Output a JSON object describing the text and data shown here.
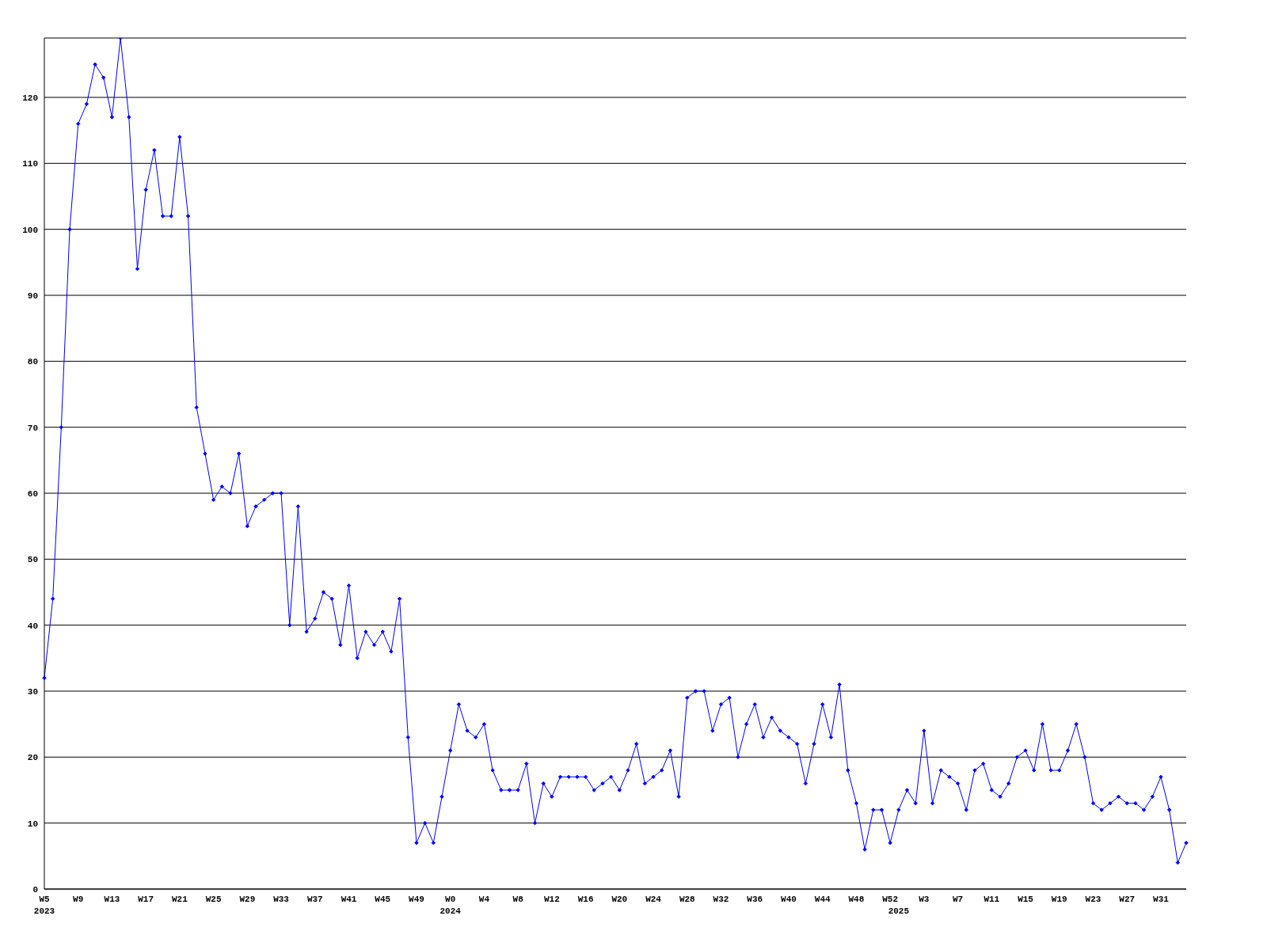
{
  "chart_data": {
    "type": "line",
    "categories": [
      "W5\n2023",
      null,
      null,
      null,
      "W9",
      null,
      null,
      null,
      "W13",
      null,
      null,
      null,
      "W17",
      null,
      null,
      null,
      "W21",
      null,
      null,
      null,
      "W25",
      null,
      null,
      null,
      "W29",
      null,
      null,
      null,
      "W33",
      null,
      null,
      null,
      "W37",
      null,
      null,
      null,
      "W41",
      null,
      null,
      null,
      "W45",
      null,
      null,
      null,
      "W49",
      null,
      null,
      null,
      "W0\n2024",
      null,
      null,
      null,
      "W4",
      null,
      null,
      null,
      "W8",
      null,
      null,
      null,
      "W12",
      null,
      null,
      null,
      "W16",
      null,
      null,
      null,
      "W20",
      null,
      null,
      null,
      "W24",
      null,
      null,
      null,
      "W28",
      null,
      null,
      null,
      "W32",
      null,
      null,
      null,
      "W36",
      null,
      null,
      null,
      "W40",
      null,
      null,
      null,
      "W44",
      null,
      null,
      null,
      "W48",
      null,
      null,
      null,
      "W52",
      "\n2025",
      null,
      null,
      "W3",
      null,
      null,
      null,
      "W7",
      null,
      null,
      null,
      "W11",
      null,
      null,
      null,
      "W15",
      null,
      null,
      null,
      "W19",
      null,
      null,
      null,
      "W23",
      null,
      null,
      null,
      "W27",
      null,
      null,
      null,
      "W31",
      null,
      null,
      null
    ],
    "series": [
      {
        "color": "#0000ff",
        "values": [
          32,
          44,
          70,
          100,
          116,
          119,
          125,
          123,
          117,
          129,
          117,
          94,
          106,
          112,
          102,
          102,
          114,
          102,
          73,
          66,
          59,
          61,
          60,
          66,
          55,
          58,
          59,
          60,
          60,
          40,
          58,
          39,
          41,
          45,
          44,
          37,
          46,
          35,
          39,
          37,
          39,
          36,
          44,
          23,
          7,
          10,
          7,
          14,
          21,
          28,
          24,
          23,
          25,
          18,
          15,
          15,
          15,
          19,
          10,
          16,
          14,
          17,
          17,
          17,
          17,
          15,
          16,
          17,
          15,
          18,
          22,
          16,
          17,
          18,
          21,
          14,
          29,
          30,
          30,
          24,
          28,
          29,
          20,
          25,
          28,
          23,
          26,
          24,
          23,
          22,
          16,
          22,
          28,
          23,
          31,
          18,
          13,
          6,
          12,
          12,
          7,
          12,
          15,
          13,
          24,
          13,
          18,
          17,
          16,
          12,
          18,
          19,
          15,
          14,
          16,
          20,
          21,
          18,
          25,
          18,
          18,
          21,
          25,
          20,
          13,
          12,
          13,
          14,
          13,
          13,
          12,
          14,
          17,
          12,
          4,
          7
        ]
      }
    ],
    "ylim": [
      0,
      129
    ],
    "yticks": [
      0,
      10,
      20,
      30,
      40,
      50,
      60,
      70,
      80,
      90,
      100,
      110,
      120
    ],
    "grid": "y",
    "marker": "diamond",
    "line_style": "solid"
  }
}
